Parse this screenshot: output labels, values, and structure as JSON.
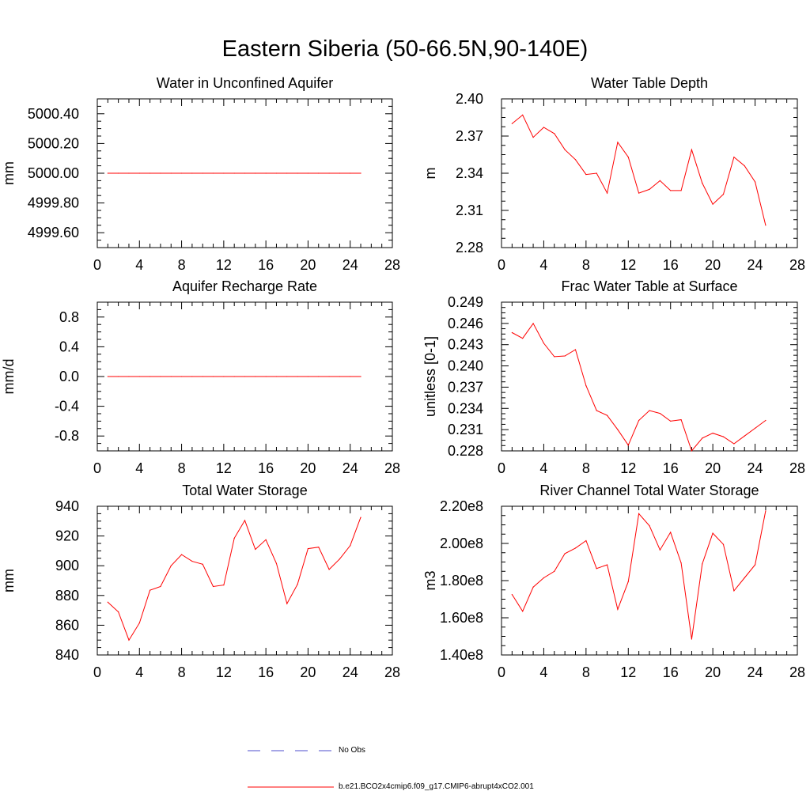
{
  "figure": {
    "title": "Eastern Siberia (50-66.5N,90-140E)"
  },
  "colors": {
    "model_line": "#ff0000",
    "obs_line": "#4d4dcc",
    "axis": "#000000"
  },
  "legend": {
    "obs_label": "No Obs",
    "model_label": "b.e21.BCO2x4cmip6.f09_g17.CMIP6-abrupt4xCO2.001"
  },
  "chart_data": [
    {
      "type": "line",
      "title": "Water in Unconfined Aquifer",
      "ylabel": "mm",
      "xlim": [
        0,
        28
      ],
      "xticks": [
        0,
        4,
        8,
        12,
        16,
        20,
        24,
        28
      ],
      "ylim": [
        4999.5,
        5000.5
      ],
      "yticks": [
        4999.6,
        4999.8,
        5000.0,
        5000.2,
        5000.4
      ],
      "ytick_labels": [
        "4999.60",
        "4999.80",
        "5000.00",
        "5000.20",
        "5000.40"
      ],
      "x": [
        1,
        2,
        3,
        4,
        5,
        6,
        7,
        8,
        9,
        10,
        11,
        12,
        13,
        14,
        15,
        16,
        17,
        18,
        19,
        20,
        21,
        22,
        23,
        24,
        25
      ],
      "values": [
        5000,
        5000,
        5000,
        5000,
        5000,
        5000,
        5000,
        5000,
        5000,
        5000,
        5000,
        5000,
        5000,
        5000,
        5000,
        5000,
        5000,
        5000,
        5000,
        5000,
        5000,
        5000,
        5000,
        5000,
        5000
      ]
    },
    {
      "type": "line",
      "title": "Water Table Depth",
      "ylabel": "m",
      "xlim": [
        0,
        28
      ],
      "xticks": [
        0,
        4,
        8,
        12,
        16,
        20,
        24,
        28
      ],
      "ylim": [
        2.28,
        2.4
      ],
      "yticks": [
        2.28,
        2.31,
        2.34,
        2.37,
        2.4
      ],
      "ytick_labels": [
        "2.28",
        "2.31",
        "2.34",
        "2.37",
        "2.40"
      ],
      "x": [
        1,
        2,
        3,
        4,
        5,
        6,
        7,
        8,
        9,
        10,
        11,
        12,
        13,
        14,
        15,
        16,
        17,
        18,
        19,
        20,
        21,
        22,
        23,
        24,
        25
      ],
      "values": [
        2.38,
        2.387,
        2.369,
        2.377,
        2.372,
        2.359,
        2.351,
        2.339,
        2.34,
        2.324,
        2.365,
        2.353,
        2.324,
        2.327,
        2.334,
        2.326,
        2.326,
        2.359,
        2.332,
        2.315,
        2.323,
        2.353,
        2.346,
        2.333,
        2.298
      ]
    },
    {
      "type": "line",
      "title": "Aquifer Recharge Rate",
      "ylabel": "mm/d",
      "xlim": [
        0,
        28
      ],
      "xticks": [
        0,
        4,
        8,
        12,
        16,
        20,
        24,
        28
      ],
      "ylim": [
        -1.0,
        1.0
      ],
      "yticks": [
        -0.8,
        -0.4,
        0.0,
        0.4,
        0.8
      ],
      "ytick_labels": [
        "-0.8",
        "-0.4",
        "0.0",
        "0.4",
        "0.8"
      ],
      "x": [
        1,
        2,
        3,
        4,
        5,
        6,
        7,
        8,
        9,
        10,
        11,
        12,
        13,
        14,
        15,
        16,
        17,
        18,
        19,
        20,
        21,
        22,
        23,
        24,
        25
      ],
      "values": [
        0,
        0,
        0,
        0,
        0,
        0,
        0,
        0,
        0,
        0,
        0,
        0,
        0,
        0,
        0,
        0,
        0,
        0,
        0,
        0,
        0,
        0,
        0,
        0,
        0
      ]
    },
    {
      "type": "line",
      "title": "Frac Water Table at Surface",
      "ylabel": "unitless [0-1]",
      "xlim": [
        0,
        28
      ],
      "xticks": [
        0,
        4,
        8,
        12,
        16,
        20,
        24,
        28
      ],
      "ylim": [
        0.228,
        0.249
      ],
      "yticks": [
        0.228,
        0.231,
        0.234,
        0.237,
        0.24,
        0.243,
        0.246,
        0.249
      ],
      "ytick_labels": [
        "0.228",
        "0.231",
        "0.234",
        "0.237",
        "0.240",
        "0.243",
        "0.246",
        "0.249"
      ],
      "x": [
        1,
        2,
        3,
        4,
        5,
        6,
        7,
        8,
        9,
        10,
        11,
        12,
        13,
        14,
        15,
        16,
        17,
        18,
        19,
        20,
        21,
        22,
        23,
        24,
        25
      ],
      "values": [
        0.2447,
        0.2439,
        0.246,
        0.2432,
        0.2413,
        0.2414,
        0.2423,
        0.2372,
        0.2337,
        0.233,
        0.231,
        0.2288,
        0.2323,
        0.2337,
        0.2333,
        0.2322,
        0.2324,
        0.228,
        0.2298,
        0.2305,
        0.23,
        0.229,
        0.2301,
        0.2312,
        0.2323
      ]
    },
    {
      "type": "line",
      "title": "Total Water Storage",
      "ylabel": "mm",
      "xlim": [
        0,
        28
      ],
      "xticks": [
        0,
        4,
        8,
        12,
        16,
        20,
        24,
        28
      ],
      "ylim": [
        840,
        940
      ],
      "yticks": [
        840,
        860,
        880,
        900,
        920,
        940
      ],
      "ytick_labels": [
        "840",
        "860",
        "880",
        "900",
        "920",
        "940"
      ],
      "x": [
        1,
        2,
        3,
        4,
        5,
        6,
        7,
        8,
        9,
        10,
        11,
        12,
        13,
        14,
        15,
        16,
        17,
        18,
        19,
        20,
        21,
        22,
        23,
        24,
        25
      ],
      "values": [
        875.5,
        869,
        850,
        861.5,
        883.5,
        886,
        900,
        907.5,
        903,
        901,
        886,
        887,
        918.5,
        930.5,
        911,
        917.5,
        901.5,
        874.5,
        887.5,
        911.5,
        912.5,
        897.5,
        904.5,
        913.5,
        932.5
      ]
    },
    {
      "type": "line",
      "title": "River Channel Total Water Storage",
      "ylabel": "m3",
      "xlim": [
        0,
        28
      ],
      "xticks": [
        0,
        4,
        8,
        12,
        16,
        20,
        24,
        28
      ],
      "ylim": [
        140000000,
        220000000
      ],
      "yticks": [
        140000000,
        160000000,
        180000000,
        200000000,
        220000000
      ],
      "ytick_labels": [
        "1.40e8",
        "1.60e8",
        "1.80e8",
        "2.00e8",
        "2.20e8"
      ],
      "x": [
        1,
        2,
        3,
        4,
        5,
        6,
        7,
        8,
        9,
        10,
        11,
        12,
        13,
        14,
        15,
        16,
        17,
        18,
        19,
        20,
        21,
        22,
        23,
        24,
        25
      ],
      "values": [
        172500000,
        163500000,
        176500000,
        181500000,
        185000000,
        194500000,
        197500000,
        201500000,
        186500000,
        188500000,
        164500000,
        179500000,
        216000000,
        209500000,
        196500000,
        206000000,
        189500000,
        148500000,
        189000000,
        205500000,
        199500000,
        174500000,
        181500000,
        188500000,
        217500000
      ]
    }
  ]
}
